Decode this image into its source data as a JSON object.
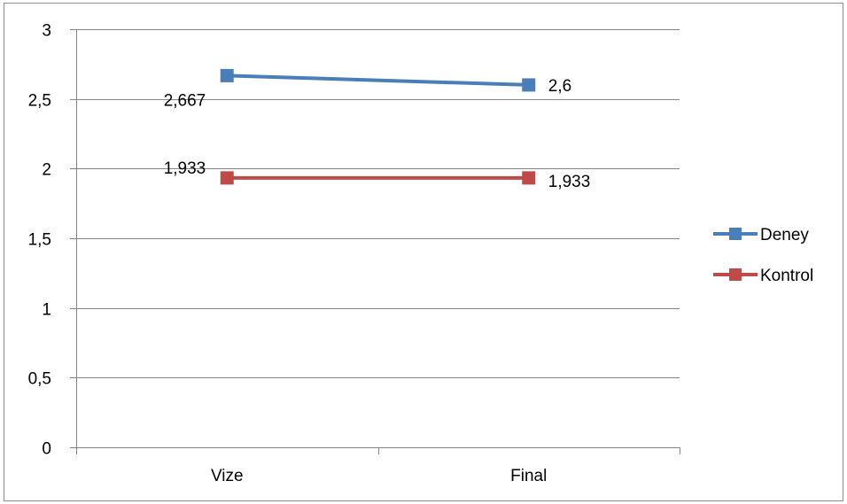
{
  "chart_data": {
    "type": "line",
    "categories": [
      "Vize",
      "Final"
    ],
    "series": [
      {
        "name": "Deney",
        "values": [
          2.667,
          2.6
        ],
        "labels": [
          "2,667",
          "2,6"
        ],
        "color": "#4a7ebb"
      },
      {
        "name": "Kontrol",
        "values": [
          1.933,
          1.933
        ],
        "labels": [
          "1,933",
          "1,933"
        ],
        "color": "#be4b48"
      }
    ],
    "ylim": [
      0,
      3
    ],
    "yticks": [
      0,
      0.5,
      1,
      1.5,
      2,
      2.5,
      3
    ],
    "ytick_labels": [
      "0",
      "0,5",
      "1",
      "1,5",
      "2",
      "2,5",
      "3"
    ],
    "grid": true,
    "marker": "square",
    "legend": "right",
    "gridline_color": "#868686",
    "axis_color": "#868686"
  }
}
